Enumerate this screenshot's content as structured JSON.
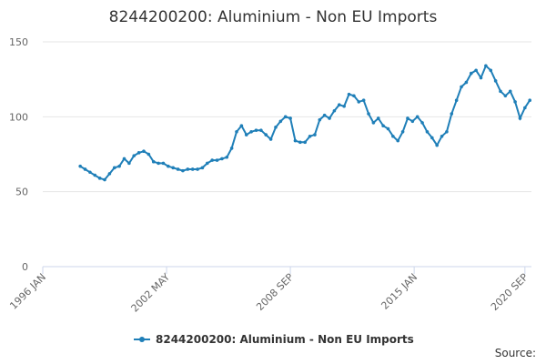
{
  "chart_data": {
    "type": "line",
    "title": "8244200200: Aluminium - Non EU Imports",
    "source_label": "Source:",
    "x": [
      "1997-12",
      "1998-03",
      "1998-06",
      "1998-09",
      "1998-12",
      "1999-03",
      "1999-06",
      "1999-09",
      "1999-12",
      "2000-03",
      "2000-06",
      "2000-09",
      "2000-12",
      "2001-03",
      "2001-06",
      "2001-09",
      "2001-12",
      "2002-03",
      "2002-06",
      "2002-09",
      "2002-12",
      "2003-03",
      "2003-06",
      "2003-09",
      "2003-12",
      "2004-03",
      "2004-06",
      "2004-09",
      "2004-12",
      "2005-03",
      "2005-06",
      "2005-09",
      "2005-12",
      "2006-03",
      "2006-06",
      "2006-09",
      "2006-12",
      "2007-03",
      "2007-06",
      "2007-09",
      "2007-12",
      "2008-03",
      "2008-06",
      "2008-09",
      "2008-12",
      "2009-03",
      "2009-06",
      "2009-09",
      "2009-12",
      "2010-03",
      "2010-06",
      "2010-09",
      "2010-12",
      "2011-03",
      "2011-06",
      "2011-09",
      "2011-12",
      "2012-03",
      "2012-06",
      "2012-09",
      "2012-12",
      "2013-03",
      "2013-06",
      "2013-09",
      "2013-12",
      "2014-03",
      "2014-06",
      "2014-09",
      "2014-12",
      "2015-03",
      "2015-06",
      "2015-09",
      "2015-12",
      "2016-03",
      "2016-06",
      "2016-09",
      "2016-12",
      "2017-03",
      "2017-06",
      "2017-09",
      "2017-12",
      "2018-03",
      "2018-06",
      "2018-09",
      "2018-12",
      "2019-03",
      "2019-06",
      "2019-09",
      "2019-12",
      "2020-03",
      "2020-06",
      "2020-09",
      "2020-12"
    ],
    "series": [
      {
        "name": "8244200200: Aluminium - Non EU Imports",
        "color": "#1f7fb8",
        "values": [
          67,
          65,
          63,
          61,
          59,
          58,
          62,
          66,
          67,
          72,
          69,
          74,
          76,
          77,
          75,
          70,
          69,
          69,
          67,
          66,
          65,
          64,
          65,
          65,
          65,
          66,
          69,
          71,
          71,
          72,
          73,
          79,
          90,
          94,
          88,
          90,
          91,
          91,
          88,
          85,
          93,
          97,
          100,
          99,
          84,
          83,
          83,
          87,
          88,
          98,
          101,
          99,
          104,
          108,
          107,
          115,
          114,
          110,
          111,
          102,
          96,
          99,
          94,
          92,
          87,
          84,
          90,
          99,
          97,
          100,
          96,
          90,
          86,
          81,
          87,
          90,
          102,
          111,
          120,
          123,
          129,
          131,
          126,
          134,
          131,
          124,
          117,
          114,
          117,
          110,
          99,
          106,
          111
        ]
      }
    ],
    "xlim": [
      "1996-01",
      "2021-01"
    ],
    "xticks": [
      {
        "value": "1996-01",
        "label": "1996 JAN"
      },
      {
        "value": "2002-05",
        "label": "2002 MAY"
      },
      {
        "value": "2008-09",
        "label": "2008 SEP"
      },
      {
        "value": "2015-01",
        "label": "2015 JAN"
      },
      {
        "value": "2020-09",
        "label": "2020 SEP"
      }
    ],
    "ylim": [
      0,
      150
    ],
    "yticks": [
      0,
      50,
      100,
      150
    ],
    "grid": true
  }
}
